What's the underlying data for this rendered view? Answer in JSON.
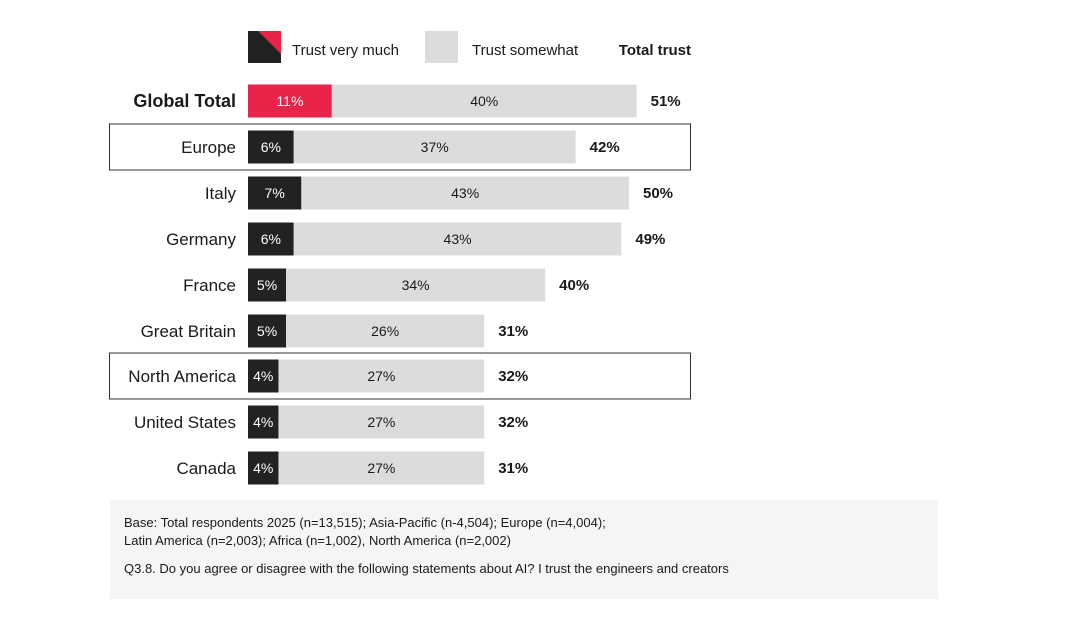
{
  "chart_data": {
    "type": "bar",
    "stacked": true,
    "orientation": "horizontal",
    "legend": {
      "placement": "top",
      "items": [
        "Trust very much",
        "Trust somewhat"
      ],
      "total_label": "Total trust"
    },
    "categories": [
      "Global Total",
      "Europe",
      "Italy",
      "Germany",
      "France",
      "Great Britain",
      "North America",
      "United States",
      "Canada"
    ],
    "highlighted_categories": [
      "Europe",
      "North America"
    ],
    "series": [
      {
        "name": "Trust very much",
        "values": [
          11,
          6,
          7,
          6,
          5,
          5,
          4,
          4,
          4
        ],
        "labels": [
          "11%",
          "6%",
          "7%",
          "6%",
          "5%",
          "5%",
          "4%",
          "4%",
          "4%"
        ]
      },
      {
        "name": "Trust somewhat",
        "values": [
          40,
          37,
          43,
          43,
          34,
          26,
          27,
          27,
          27
        ],
        "labels": [
          "40%",
          "37%",
          "43%",
          "43%",
          "34%",
          "26%",
          "27%",
          "27%",
          "27%"
        ]
      }
    ],
    "totals": [
      51,
      42,
      50,
      49,
      40,
      31,
      32,
      32,
      31
    ],
    "total_labels": [
      "51%",
      "42%",
      "50%",
      "49%",
      "40%",
      "31%",
      "32%",
      "32%",
      "31%"
    ],
    "colors": {
      "trust_very_much": "#222222",
      "trust_very_much_global": "#e8244b",
      "trust_somewhat": "#dcdcdc"
    },
    "xlim": [
      0,
      55
    ]
  },
  "footnote": {
    "base_line1": "Base: Total respondents 2025 (n=13,515); Asia-Pacific (n-4,504); Europe (n=4,004);",
    "base_line2": "Latin America (n=2,003); Africa (n=1,002), North America (n=2,002)",
    "question": "Q3.8. Do you agree or disagree with the following statements about AI? I trust the engineers and creators"
  }
}
